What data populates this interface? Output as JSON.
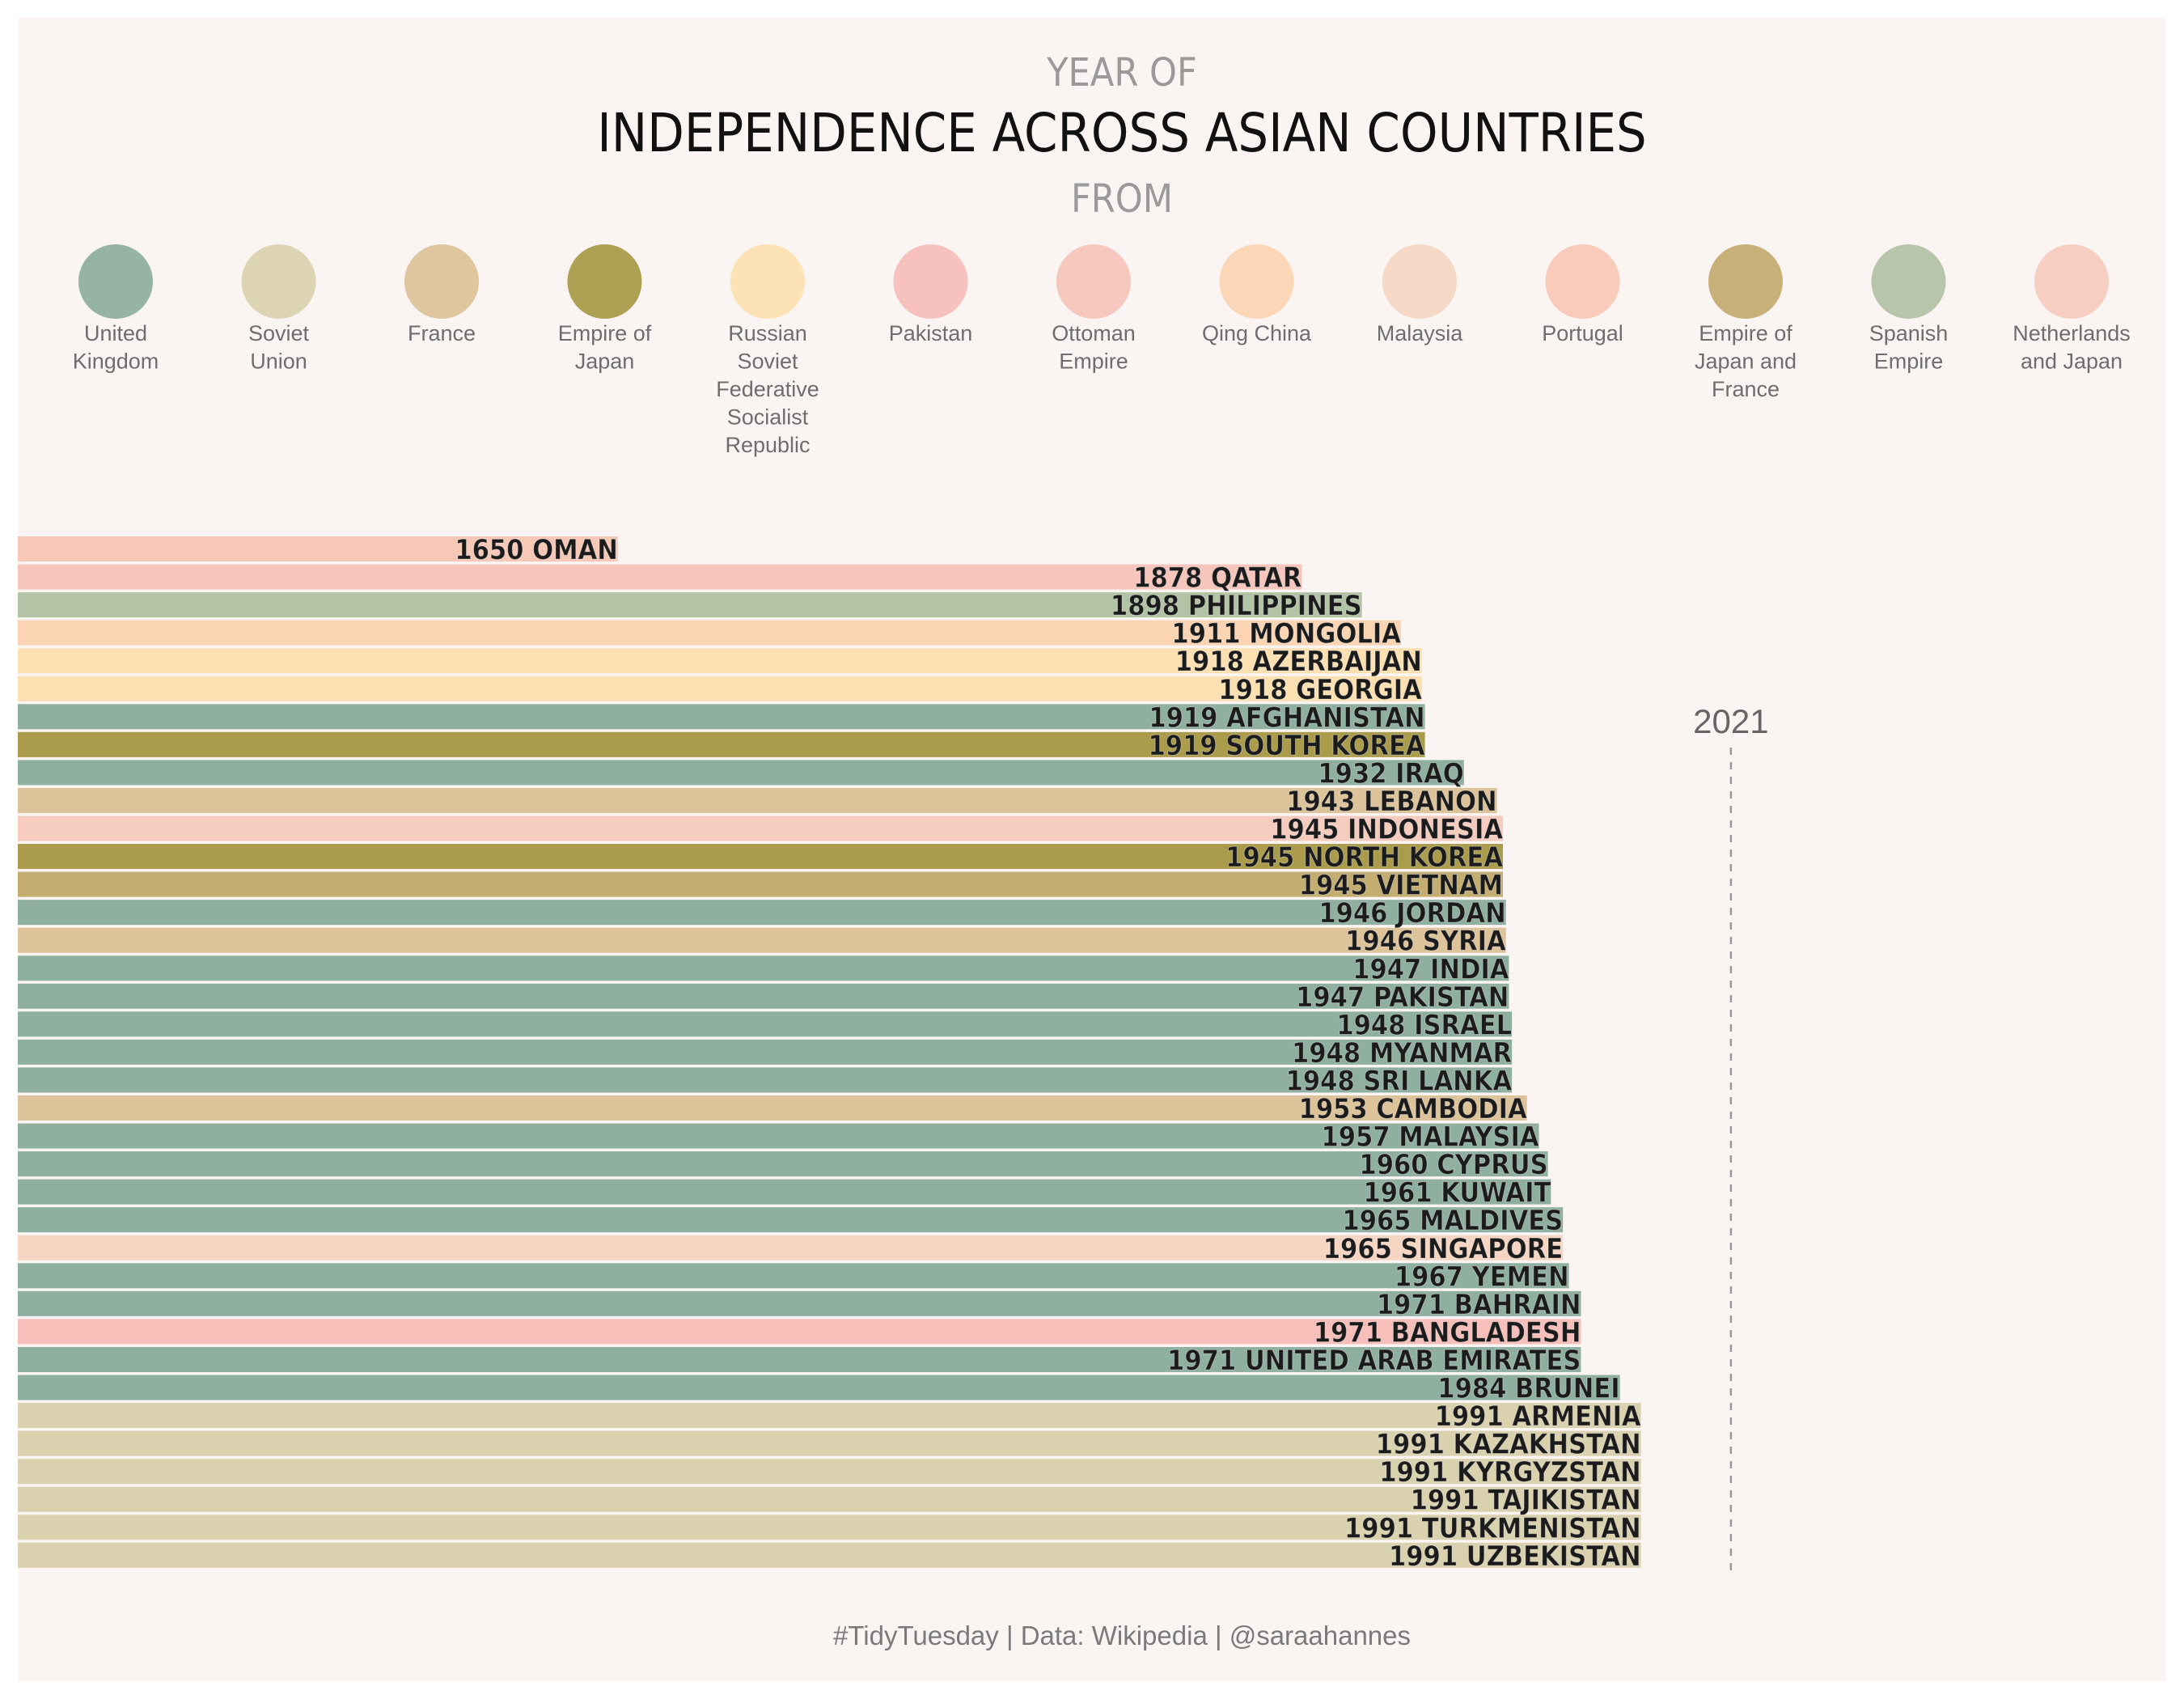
{
  "chart_data": {
    "type": "bar",
    "orientation": "horizontal",
    "title_line1": "YEAR OF",
    "title_line2": "INDEPENDENCE ACROSS ASIAN COUNTRIES",
    "title_line3": "FROM",
    "legend_placement": "top",
    "reference_line": {
      "value": 2021,
      "label": "2021",
      "style": "dashed"
    },
    "xlim": [
      1450,
      2110
    ],
    "caption": "#TidyTuesday | Data: Wikipedia | @saraahannes",
    "groups": [
      {
        "name_lines": [
          "United",
          "Kingdom"
        ],
        "color": "#8fb0a0"
      },
      {
        "name_lines": [
          "Soviet",
          "Union"
        ],
        "color": "#dad2ae"
      },
      {
        "name_lines": [
          "France"
        ],
        "color": "#ddc39a"
      },
      {
        "name_lines": [
          "Empire of",
          "Japan"
        ],
        "color": "#ab9c4b"
      },
      {
        "name_lines": [
          "Russian",
          "Soviet",
          "Federative",
          "Socialist",
          "Republic"
        ],
        "color": "#fde0b1"
      },
      {
        "name_lines": [
          "Pakistan"
        ],
        "color": "#f7bfb9"
      },
      {
        "name_lines": [
          "Ottoman",
          "Empire"
        ],
        "color": "#f6c5bb"
      },
      {
        "name_lines": [
          "Qing China"
        ],
        "color": "#fbd5b3"
      },
      {
        "name_lines": [
          "Malaysia"
        ],
        "color": "#f6d6c3"
      },
      {
        "name_lines": [
          "Portugal"
        ],
        "color": "#f8c8b7"
      },
      {
        "name_lines": [
          "Empire of",
          "Japan and",
          "France"
        ],
        "color": "#c4ad71"
      },
      {
        "name_lines": [
          "Spanish",
          "Empire"
        ],
        "color": "#b3c3a5"
      },
      {
        "name_lines": [
          "Netherlands",
          "and Japan"
        ],
        "color": "#f6ccbf"
      }
    ],
    "bars": [
      {
        "label": "1650 OMAN",
        "year": 1650,
        "group": 9
      },
      {
        "label": "1878 QATAR",
        "year": 1878,
        "group": 6
      },
      {
        "label": "1898 PHILIPPINES",
        "year": 1898,
        "group": 11
      },
      {
        "label": "1911 MONGOLIA",
        "year": 1911,
        "group": 7
      },
      {
        "label": "1918 AZERBAIJAN",
        "year": 1918,
        "group": 4
      },
      {
        "label": "1918 GEORGIA",
        "year": 1918,
        "group": 4
      },
      {
        "label": "1919 AFGHANISTAN",
        "year": 1919,
        "group": 0
      },
      {
        "label": "1919 SOUTH KOREA",
        "year": 1919,
        "group": 3
      },
      {
        "label": "1932 IRAQ",
        "year": 1932,
        "group": 0
      },
      {
        "label": "1943 LEBANON",
        "year": 1943,
        "group": 2
      },
      {
        "label": "1945 INDONESIA",
        "year": 1945,
        "group": 12
      },
      {
        "label": "1945 NORTH KOREA",
        "year": 1945,
        "group": 3
      },
      {
        "label": "1945 VIETNAM",
        "year": 1945,
        "group": 10
      },
      {
        "label": "1946 JORDAN",
        "year": 1946,
        "group": 0
      },
      {
        "label": "1946 SYRIA",
        "year": 1946,
        "group": 2
      },
      {
        "label": "1947 INDIA",
        "year": 1947,
        "group": 0
      },
      {
        "label": "1947 PAKISTAN",
        "year": 1947,
        "group": 0
      },
      {
        "label": "1948 ISRAEL",
        "year": 1948,
        "group": 0
      },
      {
        "label": "1948 MYANMAR",
        "year": 1948,
        "group": 0
      },
      {
        "label": "1948 SRI LANKA",
        "year": 1948,
        "group": 0
      },
      {
        "label": "1953 CAMBODIA",
        "year": 1953,
        "group": 2
      },
      {
        "label": "1957 MALAYSIA",
        "year": 1957,
        "group": 0
      },
      {
        "label": "1960 CYPRUS",
        "year": 1960,
        "group": 0
      },
      {
        "label": "1961 KUWAIT",
        "year": 1961,
        "group": 0
      },
      {
        "label": "1965 MALDIVES",
        "year": 1965,
        "group": 0
      },
      {
        "label": "1965 SINGAPORE",
        "year": 1965,
        "group": 8
      },
      {
        "label": "1967 YEMEN",
        "year": 1967,
        "group": 0
      },
      {
        "label": "1971 BAHRAIN",
        "year": 1971,
        "group": 0
      },
      {
        "label": "1971 BANGLADESH",
        "year": 1971,
        "group": 5
      },
      {
        "label": "1971 UNITED ARAB EMIRATES",
        "year": 1971,
        "group": 0
      },
      {
        "label": "1984 BRUNEI",
        "year": 1984,
        "group": 0
      },
      {
        "label": "1991 ARMENIA",
        "year": 1991,
        "group": 1
      },
      {
        "label": "1991 KAZAKHSTAN",
        "year": 1991,
        "group": 1
      },
      {
        "label": "1991 KYRGYZSTAN",
        "year": 1991,
        "group": 1
      },
      {
        "label": "1991 TAJIKISTAN",
        "year": 1991,
        "group": 1
      },
      {
        "label": "1991 TURKMENISTAN",
        "year": 1991,
        "group": 1
      },
      {
        "label": "1991 UZBEKISTAN",
        "year": 1991,
        "group": 1
      }
    ]
  }
}
